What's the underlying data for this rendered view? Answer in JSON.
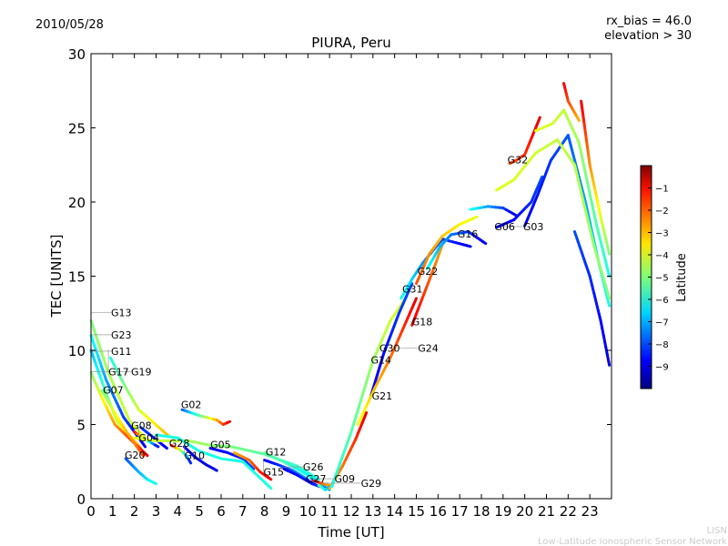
{
  "header": {
    "date": "2010/05/28",
    "rx_bias": "rx_bias = 46.0",
    "elevation": "elevation > 30"
  },
  "footer": {
    "brand": "LISN",
    "network": "Low-Latitude Ionospheric Sensor Network"
  },
  "chart_data": {
    "type": "scatter",
    "title": "PIURA, Peru",
    "xlabel": "Time [UT]",
    "ylabel": "TEC [UNITS]",
    "xlim": [
      0,
      24
    ],
    "ylim": [
      0,
      30
    ],
    "xticks": [
      0,
      1,
      2,
      3,
      4,
      5,
      6,
      7,
      8,
      9,
      10,
      11,
      12,
      13,
      14,
      15,
      16,
      17,
      18,
      19,
      20,
      21,
      22,
      23
    ],
    "yticks": [
      0,
      5,
      10,
      15,
      20,
      25,
      30
    ],
    "grid": false,
    "colorbar": {
      "label": "Latitude",
      "range": [
        -10,
        0
      ],
      "ticks": [
        -1,
        -2,
        -3,
        -4,
        -5,
        -6,
        -7,
        -8,
        -9
      ],
      "colormap": "jet"
    },
    "tracks": [
      {
        "label": "G13",
        "label_at": [
          0,
          12.3
        ],
        "points": [
          [
            0,
            12
          ],
          [
            0.8,
            8.5
          ],
          [
            1.8,
            5.2
          ],
          [
            2.6,
            3.9
          ]
        ],
        "lat": [
          -5,
          -4
        ]
      },
      {
        "label": "G23",
        "label_at": [
          0,
          10.8
        ],
        "points": [
          [
            0,
            11
          ],
          [
            0.7,
            8
          ],
          [
            1.5,
            5.5
          ],
          [
            2.5,
            3.5
          ]
        ],
        "lat": [
          -6,
          -9
        ]
      },
      {
        "label": "G11",
        "label_at": [
          0,
          9.7
        ],
        "points": [
          [
            0,
            10
          ],
          [
            0.6,
            7.5
          ],
          [
            1.2,
            5.2
          ],
          [
            2.3,
            3.4
          ]
        ],
        "lat": [
          -7,
          -3
        ]
      },
      {
        "label": "G17",
        "label_at": [
          0.8,
          9.8
        ],
        "points": [
          [
            0.9,
            9.5
          ],
          [
            1.6,
            7.5
          ],
          [
            2.2,
            6
          ],
          [
            3.6,
            4.2
          ]
        ],
        "lat": [
          -6,
          -3
        ]
      },
      {
        "label": "G19",
        "label_at": [
          0,
          8.3
        ],
        "points": [
          [
            0,
            8.5
          ],
          [
            0.5,
            6.8
          ],
          [
            1.1,
            5
          ],
          [
            2.6,
            2.9
          ]
        ],
        "lat": [
          -5,
          -1
        ]
      },
      {
        "label": "G07",
        "label_at": [
          0.55,
          7.1
        ],
        "points": [
          [
            0.5,
            7.3
          ],
          [
            1,
            6
          ],
          [
            1.6,
            4.6
          ],
          [
            2.4,
            2.9
          ]
        ],
        "lat": [
          -5,
          -2
        ]
      },
      {
        "label": "G08",
        "label_at": [
          1.85,
          4.7
        ],
        "points": [
          [
            2,
            4.5
          ],
          [
            2.5,
            4
          ],
          [
            3.1,
            3.5
          ]
        ],
        "lat": [
          -1,
          -9
        ]
      },
      {
        "label": "G04",
        "label_at": [
          2.2,
          4.6
        ],
        "points": [
          [
            2.3,
            4.8
          ],
          [
            2.9,
            4.1
          ],
          [
            3.5,
            3.4
          ]
        ],
        "lat": [
          -8,
          -9
        ]
      },
      {
        "label": "G20",
        "label_at": [
          1.55,
          2.7
        ],
        "points": [
          [
            1.6,
            2.7
          ],
          [
            2.2,
            1.8
          ],
          [
            2.6,
            1.3
          ],
          [
            3.0,
            1.0
          ]
        ],
        "lat": [
          -8,
          -6
        ]
      },
      {
        "label": "G02",
        "label_at": [
          4.15,
          6.1
        ],
        "points": [
          [
            4.2,
            6
          ],
          [
            5,
            5.6
          ],
          [
            5.8,
            5.3
          ],
          [
            6.1,
            5.0
          ],
          [
            6.4,
            5.2
          ]
        ],
        "lat": [
          -8,
          -1
        ]
      },
      {
        "label": "G28",
        "label_at": [
          3.6,
          3.5
        ],
        "points": [
          [
            3.7,
            3.6
          ],
          [
            4.1,
            3.3
          ],
          [
            4.4,
            2.9
          ],
          [
            4.6,
            2.4
          ]
        ],
        "lat": [
          -1,
          -9
        ]
      },
      {
        "label": "G10",
        "label_at": [
          4.3,
          3.4
        ],
        "points": [
          [
            4.3,
            3.5
          ],
          [
            4.8,
            2.8
          ],
          [
            5.3,
            2.3
          ],
          [
            5.8,
            1.9
          ]
        ],
        "lat": [
          -9,
          -9
        ]
      },
      {
        "label": "G05",
        "label_at": [
          5.5,
          3.4
        ],
        "points": [
          [
            5.5,
            3.4
          ],
          [
            6.3,
            3.1
          ],
          [
            7,
            2.7
          ],
          [
            7.5,
            2.0
          ]
        ],
        "lat": [
          -9,
          -8
        ]
      },
      {
        "label": "G12",
        "label_at": [
          8.05,
          2.9
        ],
        "points": [
          [
            8,
            3.1
          ],
          [
            9,
            2.4
          ],
          [
            10,
            1.6
          ],
          [
            11,
            0.6
          ]
        ],
        "lat": [
          -5,
          -7
        ]
      },
      {
        "label": "G15",
        "label_at": [
          7.95,
          2.3
        ],
        "points": [
          [
            8,
            2.6
          ],
          [
            8.6,
            2.3
          ],
          [
            9.3,
            1.9
          ],
          [
            10,
            1.3
          ]
        ],
        "lat": [
          -9,
          -7
        ]
      },
      {
        "label": "G26",
        "label_at": [
          8.85,
          1.9
        ],
        "points": [
          [
            8.9,
            2.0
          ],
          [
            9.5,
            1.6
          ],
          [
            10.2,
            1.0
          ],
          [
            10.8,
            0.7
          ]
        ],
        "lat": [
          -9,
          -8
        ]
      },
      {
        "label": "G27",
        "label_at": [
          9.9,
          1.1
        ],
        "points": [
          [
            9.9,
            1.3
          ],
          [
            10.4,
            0.9
          ],
          [
            10.8,
            0.7
          ]
        ],
        "lat": [
          -9,
          -8
        ]
      },
      {
        "label": "G09",
        "label_at": [
          10.3,
          1.1
        ],
        "points": [
          [
            10.3,
            1.2
          ],
          [
            10.7,
            1.0
          ],
          [
            11.0,
            0.9
          ]
        ],
        "lat": [
          -1,
          -3
        ]
      },
      {
        "label": "G29",
        "label_at": [
          10.6,
          0.8
        ],
        "points": [
          [
            10.5,
            0.9
          ],
          [
            10.8,
            0.6
          ],
          [
            11.1,
            0.9
          ],
          [
            11.3,
            1.5
          ]
        ],
        "lat": [
          -5,
          -9
        ]
      },
      {
        "label": "",
        "label_at": null,
        "points": [
          [
            2,
            4.1
          ],
          [
            3,
            3.9
          ],
          [
            4.5,
            3.9
          ],
          [
            5.5,
            3.6
          ],
          [
            6.5,
            3.5
          ],
          [
            8,
            3.0
          ],
          [
            9.5,
            2.2
          ],
          [
            10.5,
            1.3
          ]
        ],
        "lat": [
          -4,
          -6
        ]
      },
      {
        "label": "",
        "label_at": null,
        "points": [
          [
            3,
            4.3
          ],
          [
            4,
            4.1
          ],
          [
            5,
            3.2
          ],
          [
            6,
            2.7
          ],
          [
            7,
            2.5
          ],
          [
            8.3,
            0.7
          ]
        ],
        "lat": [
          -6,
          -6
        ]
      },
      {
        "label": "",
        "label_at": null,
        "points": [
          [
            6.6,
            3.1
          ],
          [
            7.3,
            2.6
          ],
          [
            7.8,
            1.8
          ],
          [
            8.3,
            1.3
          ]
        ],
        "lat": [
          -3,
          -1
        ]
      },
      {
        "label": "G21",
        "label_at": [
          12.95,
          6.7
        ],
        "points": [
          [
            11,
            0.7
          ],
          [
            11.6,
            2.2
          ],
          [
            12.2,
            4
          ],
          [
            12.7,
            5.8
          ]
        ],
        "lat": [
          -3,
          -1
        ]
      },
      {
        "label": "G14",
        "label_at": [
          12.9,
          9.1
        ],
        "points": [
          [
            11.1,
            0.8
          ],
          [
            12,
            4.5
          ],
          [
            13,
            9.3
          ],
          [
            13.8,
            12
          ],
          [
            14.5,
            13.5
          ]
        ],
        "lat": [
          -6,
          -4
        ]
      },
      {
        "label": "G30",
        "label_at": [
          13.3,
          9.9
        ],
        "points": [
          [
            12.9,
            6.9
          ],
          [
            13.5,
            9.8
          ],
          [
            14.2,
            12.5
          ],
          [
            14.8,
            14.5
          ]
        ],
        "lat": [
          -9,
          -8
        ]
      },
      {
        "label": "G24",
        "label_at": [
          14.15,
          9.9
        ],
        "points": [
          [
            12.3,
            5
          ],
          [
            13.1,
            7.5
          ],
          [
            13.8,
            9.5
          ],
          [
            14.4,
            11.5
          ],
          [
            15,
            13.5
          ]
        ],
        "lat": [
          -4,
          -1
        ]
      },
      {
        "label": "G18",
        "label_at": [
          14.8,
          11.7
        ],
        "points": [
          [
            14.8,
            11.7
          ],
          [
            15.3,
            13.6
          ],
          [
            15.8,
            15.5
          ],
          [
            16.3,
            17.5
          ]
        ],
        "lat": [
          -1,
          -3
        ]
      },
      {
        "label": "G31",
        "label_at": [
          14.35,
          13.9
        ],
        "points": [
          [
            14.3,
            13.5
          ],
          [
            14.8,
            14.8
          ],
          [
            15.3,
            15.9
          ],
          [
            16.2,
            17.5
          ],
          [
            17.5,
            17.0
          ]
        ],
        "lat": [
          -6,
          -9
        ]
      },
      {
        "label": "G22",
        "label_at": [
          15.05,
          15.1
        ],
        "points": [
          [
            15,
            14.5
          ],
          [
            15.6,
            16.5
          ],
          [
            16.2,
            17.7
          ],
          [
            17.0,
            18.5
          ],
          [
            17.8,
            19.0
          ]
        ],
        "lat": [
          -2,
          -4
        ]
      },
      {
        "label": "G16",
        "label_at": [
          16.9,
          17.6
        ],
        "points": [
          [
            15.5,
            15.5
          ],
          [
            16.1,
            17
          ],
          [
            16.6,
            17.8
          ],
          [
            17.4,
            18
          ],
          [
            18.2,
            17.2
          ]
        ],
        "lat": [
          -6,
          -9
        ]
      },
      {
        "label": "G06",
        "label_at": [
          18.6,
          18.1
        ],
        "points": [
          [
            17.5,
            19.5
          ],
          [
            18.3,
            19.7
          ],
          [
            19,
            19.6
          ],
          [
            19.6,
            19.1
          ]
        ],
        "lat": [
          -6,
          -9
        ]
      },
      {
        "label": "G03",
        "label_at": [
          19.0,
          18.1
        ],
        "points": [
          [
            18.7,
            18.3
          ],
          [
            19.5,
            18.8
          ],
          [
            20.3,
            20
          ],
          [
            20.8,
            21.7
          ]
        ],
        "lat": [
          -9,
          -8
        ]
      },
      {
        "label": "G32",
        "label_at": [
          19.2,
          22.6
        ],
        "points": [
          [
            19.3,
            22.6
          ],
          [
            19.6,
            22.8
          ],
          [
            20.0,
            23.2
          ],
          [
            20.7,
            25.7
          ]
        ],
        "lat": [
          -2,
          -1
        ]
      },
      {
        "label": "",
        "label_at": null,
        "points": [
          [
            20,
            18.4
          ],
          [
            20.6,
            20.5
          ],
          [
            21.2,
            22.8
          ],
          [
            22,
            24.5
          ],
          [
            22.8,
            20
          ],
          [
            23.4,
            16
          ],
          [
            23.9,
            13
          ]
        ],
        "lat": [
          -9,
          -6
        ]
      },
      {
        "label": "",
        "label_at": null,
        "points": [
          [
            18.7,
            20.8
          ],
          [
            19.5,
            21.5
          ],
          [
            20.5,
            23.3
          ],
          [
            21.5,
            24.2
          ],
          [
            22.3,
            22.5
          ],
          [
            23.2,
            17
          ],
          [
            23.9,
            13.5
          ]
        ],
        "lat": [
          -4,
          -5
        ]
      },
      {
        "label": "",
        "label_at": null,
        "points": [
          [
            20.5,
            24.8
          ],
          [
            21.3,
            25.3
          ],
          [
            21.8,
            26.2
          ],
          [
            22.5,
            24
          ],
          [
            23.3,
            18.5
          ],
          [
            23.9,
            15
          ]
        ],
        "lat": [
          -4,
          -6
        ]
      },
      {
        "label": "",
        "label_at": null,
        "points": [
          [
            21.8,
            28
          ],
          [
            22,
            26.8
          ],
          [
            22.5,
            25.5
          ]
        ],
        "lat": [
          -1,
          -3
        ]
      },
      {
        "label": "",
        "label_at": null,
        "points": [
          [
            22.6,
            26.8
          ],
          [
            23,
            22.5
          ],
          [
            23.5,
            19
          ],
          [
            23.9,
            16.5
          ]
        ],
        "lat": [
          -1,
          -5
        ]
      },
      {
        "label": "",
        "label_at": null,
        "points": [
          [
            22.3,
            18
          ],
          [
            23,
            15
          ],
          [
            23.5,
            12
          ],
          [
            23.9,
            9
          ]
        ],
        "lat": [
          -8,
          -9
        ]
      }
    ]
  }
}
